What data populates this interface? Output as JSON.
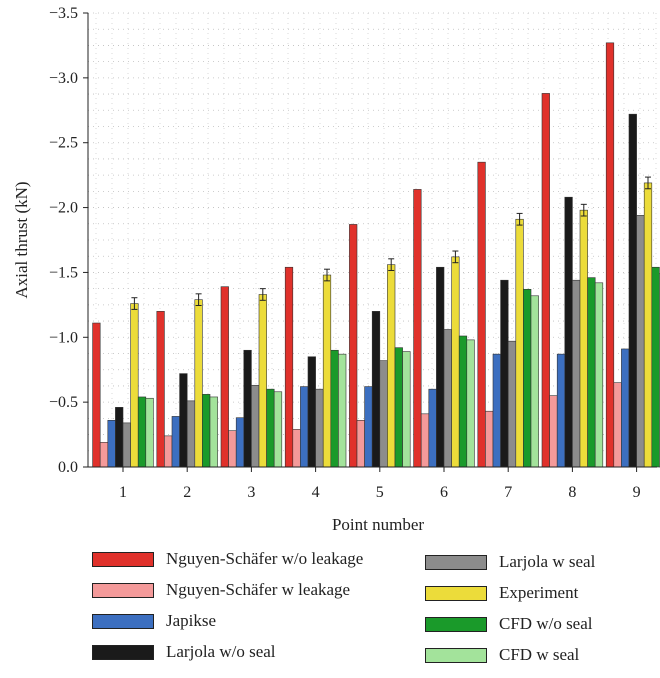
{
  "chart_data": {
    "type": "bar",
    "xlabel": "Point number",
    "ylabel": "Axial thrust (kN)",
    "ylim": [
      0,
      -3.5
    ],
    "yticks": [
      "0.0",
      "−0.5",
      "−1.0",
      "−1.5",
      "−2.0",
      "−2.5",
      "−3.0",
      "−3.5"
    ],
    "ytick_values": [
      0,
      -0.5,
      -1.0,
      -1.5,
      -2.0,
      -2.5,
      -3.0,
      -3.5
    ],
    "categories": [
      "1",
      "2",
      "3",
      "4",
      "5",
      "6",
      "7",
      "8",
      "9"
    ],
    "grid": "dotted",
    "legend_placement": "bottom",
    "series": [
      {
        "name": "Nguyen-Schäfer w/o leakage",
        "color": "#e0312b",
        "values": [
          -1.11,
          -1.2,
          -1.39,
          -1.54,
          -1.87,
          -2.14,
          -2.35,
          -2.88,
          -3.27
        ]
      },
      {
        "name": "Nguyen-Schäfer w leakage",
        "color": "#f49a9a",
        "values": [
          -0.19,
          -0.24,
          -0.28,
          -0.29,
          -0.36,
          -0.41,
          -0.43,
          -0.55,
          -0.65
        ]
      },
      {
        "name": "Japikse",
        "color": "#3c6fc0",
        "values": [
          -0.36,
          -0.39,
          -0.38,
          -0.62,
          -0.62,
          -0.6,
          -0.87,
          -0.87,
          -0.91
        ]
      },
      {
        "name": "Larjola w/o seal",
        "color": "#1a1a1a",
        "values": [
          -0.46,
          -0.72,
          -0.9,
          -0.85,
          -1.2,
          -1.54,
          -1.44,
          -2.08,
          -2.72
        ]
      },
      {
        "name": "Larjola w seal",
        "color": "#8c8c8c",
        "values": [
          -0.34,
          -0.51,
          -0.63,
          -0.6,
          -0.82,
          -1.06,
          -0.97,
          -1.44,
          -1.94
        ]
      },
      {
        "name": "Experiment",
        "color": "#ecdc3a",
        "values": [
          -1.26,
          -1.29,
          -1.33,
          -1.48,
          -1.56,
          -1.62,
          -1.91,
          -1.98,
          -2.19
        ],
        "error": 0.045
      },
      {
        "name": "CFD w/o seal",
        "color": "#1a9a2a",
        "values": [
          -0.54,
          -0.56,
          -0.6,
          -0.9,
          -0.92,
          -1.01,
          -1.37,
          -1.46,
          -1.54
        ]
      },
      {
        "name": "CFD w seal",
        "color": "#a3e39b",
        "values": [
          -0.53,
          -0.54,
          -0.58,
          -0.87,
          -0.89,
          -0.98,
          -1.32,
          -1.42,
          -1.49
        ]
      }
    ]
  }
}
